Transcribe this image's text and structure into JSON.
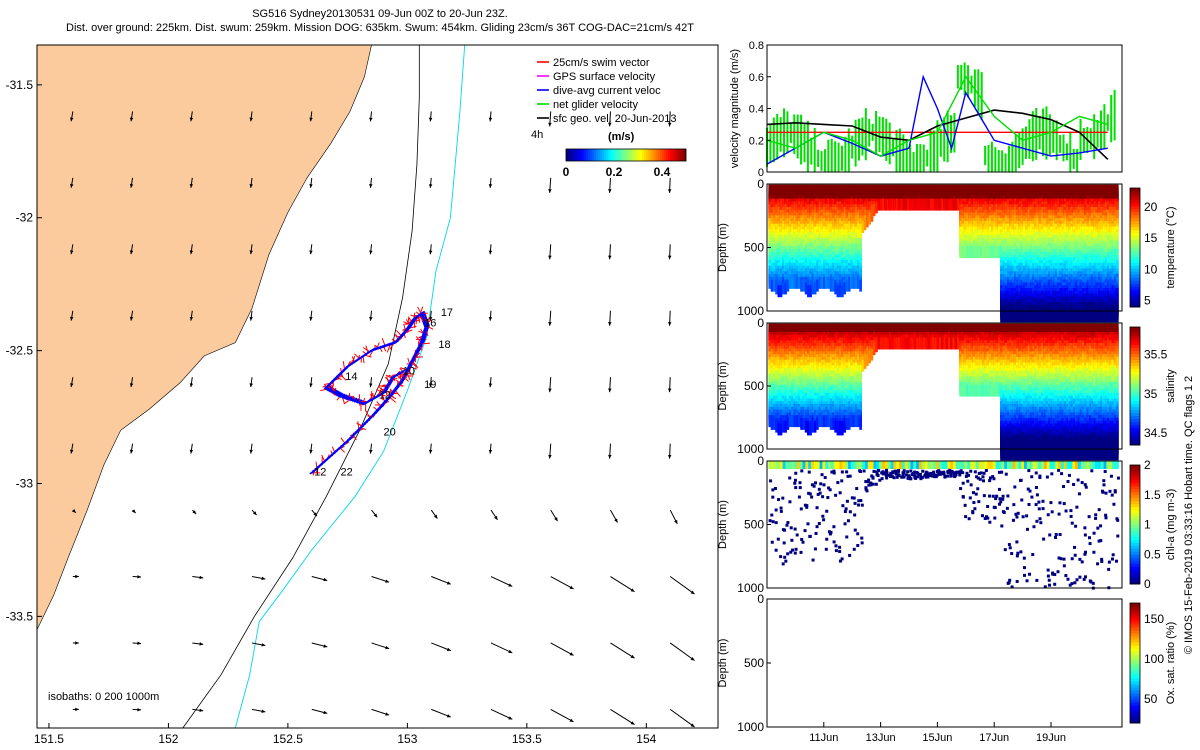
{
  "title_line1": "SG516 Sydney20130531 09-Jun 00Z to 20-Jun 23Z.",
  "title_line2": "Dist. over ground: 225km. Dist. swum: 259km. Mission DOG: 635km. Swum: 454km. Gliding 23cm/s 36T COG-DAC=21cm/s 42T",
  "chart_data": [
    {
      "type": "map",
      "xticks": [
        "151.5",
        "152",
        "152.5",
        "153",
        "153.5",
        "154"
      ],
      "xtick_values": [
        151.5,
        152,
        152.5,
        153,
        153.5,
        154
      ],
      "yticks": [
        "-31.5",
        "-32",
        "-32.5",
        "-33",
        "-33.5"
      ],
      "ytick_values": [
        -31.5,
        -32,
        -32.5,
        -33,
        -33.5
      ],
      "xlim": [
        151.45,
        154.3
      ],
      "ylim": [
        -33.92,
        -31.35
      ],
      "legend": {
        "position": "top-right",
        "entries": [
          {
            "label": "25cm/s swim vector",
            "color": "#ff0000"
          },
          {
            "label": "GPS surface velocity",
            "color": "#ff00ff"
          },
          {
            "label": "dive-avg current veloc",
            "color": "#0000ff"
          },
          {
            "label": "net glider velocity",
            "color": "#00dd00"
          },
          {
            "label": "sfc geo. vel. 20-Jun-2013",
            "color": "#000000"
          }
        ]
      },
      "colorbar": {
        "title": "(m/s)",
        "label": "4h",
        "ticks": [
          "0",
          "0.2",
          "0.4"
        ],
        "range": [
          0,
          0.5
        ]
      },
      "isobaths_label": "isobaths: 0   200  1000m",
      "day_labels": [
        {
          "text": "16",
          "lon": 153.07,
          "lat": -32.41
        },
        {
          "text": "17",
          "lon": 153.14,
          "lat": -32.37
        },
        {
          "text": "18",
          "lon": 153.13,
          "lat": -32.49
        },
        {
          "text": "14",
          "lon": 152.74,
          "lat": -32.61
        },
        {
          "text": "10",
          "lon": 152.98,
          "lat": -32.59
        },
        {
          "text": "19",
          "lon": 153.07,
          "lat": -32.64
        },
        {
          "text": "12",
          "lon": 152.88,
          "lat": -32.68
        },
        {
          "text": "20",
          "lon": 152.9,
          "lat": -32.82
        },
        {
          "text": "22",
          "lon": 152.72,
          "lat": -32.97
        },
        {
          "text": "12",
          "lon": 152.61,
          "lat": -32.97
        }
      ],
      "track": [
        [
          152.6,
          -32.96
        ],
        [
          152.75,
          -32.84
        ],
        [
          152.86,
          -32.74
        ],
        [
          152.93,
          -32.67
        ],
        [
          152.98,
          -32.61
        ],
        [
          153.02,
          -32.54
        ],
        [
          153.06,
          -32.47
        ],
        [
          153.08,
          -32.41
        ],
        [
          153.06,
          -32.36
        ],
        [
          153.03,
          -32.38
        ],
        [
          153.0,
          -32.42
        ],
        [
          152.95,
          -32.47
        ],
        [
          152.85,
          -32.5
        ],
        [
          152.75,
          -32.56
        ],
        [
          152.66,
          -32.64
        ],
        [
          152.72,
          -32.67
        ],
        [
          152.82,
          -32.7
        ],
        [
          152.9,
          -32.66
        ],
        [
          152.94,
          -32.6
        ],
        [
          152.98,
          -32.58
        ]
      ],
      "coastline": [
        [
          151.45,
          -33.55
        ],
        [
          151.52,
          -33.42
        ],
        [
          151.58,
          -33.28
        ],
        [
          151.66,
          -33.1
        ],
        [
          151.73,
          -32.93
        ],
        [
          151.8,
          -32.8
        ],
        [
          151.92,
          -32.72
        ],
        [
          152.05,
          -32.62
        ],
        [
          152.15,
          -32.52
        ],
        [
          152.28,
          -32.47
        ],
        [
          152.35,
          -32.34
        ],
        [
          152.42,
          -32.14
        ],
        [
          152.5,
          -31.98
        ],
        [
          152.58,
          -31.85
        ],
        [
          152.68,
          -31.72
        ],
        [
          152.76,
          -31.6
        ],
        [
          152.82,
          -31.47
        ],
        [
          152.85,
          -31.35
        ]
      ]
    },
    {
      "type": "line",
      "ylabel": "velocity magnitude (m/s)",
      "ylim": [
        0,
        0.8
      ],
      "yticks": [
        "0",
        "0.2",
        "0.4",
        "0.6",
        "0.8"
      ],
      "series": [
        {
          "color": "#ff0000",
          "x": [
            9,
            21
          ],
          "y": [
            0.25,
            0.25
          ]
        },
        {
          "color": "#000000",
          "x": [
            9,
            10,
            11,
            12,
            13,
            14,
            15,
            16,
            17,
            18,
            19,
            20,
            21
          ],
          "y": [
            0.3,
            0.31,
            0.3,
            0.29,
            0.22,
            0.2,
            0.29,
            0.34,
            0.39,
            0.37,
            0.33,
            0.25,
            0.08
          ]
        },
        {
          "color": "#0000ff",
          "x": [
            9,
            10,
            11,
            12,
            13,
            14,
            14.5,
            15,
            15.5,
            16,
            16.5,
            17,
            18,
            19,
            20,
            21
          ],
          "y": [
            0.05,
            0.15,
            0.25,
            0.18,
            0.1,
            0.15,
            0.6,
            0.4,
            0.15,
            0.5,
            0.35,
            0.2,
            0.15,
            0.1,
            0.12,
            0.15
          ]
        },
        {
          "color": "#00dd00",
          "x": [
            9,
            10,
            11,
            12,
            13,
            14,
            15,
            16,
            17,
            18,
            19,
            20,
            21
          ],
          "y": [
            0.2,
            0.15,
            0.25,
            0.2,
            0.1,
            0.2,
            0.25,
            0.6,
            0.35,
            0.2,
            0.25,
            0.35,
            0.3
          ]
        }
      ]
    },
    {
      "type": "heatmap",
      "ylabel": "Depth (m)",
      "ylim": [
        1000,
        0
      ],
      "yticks": [
        "0",
        "500",
        "1000"
      ],
      "colorbar_label": "temperature (°C)",
      "colorbar_ticks": [
        "5",
        "10",
        "15",
        "20"
      ],
      "colorbar_range": [
        4,
        23
      ]
    },
    {
      "type": "heatmap",
      "ylabel": "Depth (m)",
      "ylim": [
        1000,
        0
      ],
      "yticks": [
        "0",
        "500",
        "1000"
      ],
      "colorbar_label": "salinity",
      "colorbar_ticks": [
        "34.5",
        "35",
        "35.5"
      ],
      "colorbar_range": [
        34.35,
        35.85
      ]
    },
    {
      "type": "scatter",
      "ylabel": "Depth (m)",
      "ylim": [
        1000,
        0
      ],
      "yticks": [
        "0",
        "500",
        "1000"
      ],
      "colorbar_label": "chl-a (mg m-3)",
      "colorbar_ticks": [
        "0",
        "0.5",
        "1",
        "1.5",
        "2"
      ],
      "colorbar_range": [
        0,
        2
      ]
    },
    {
      "type": "heatmap",
      "ylabel": "Depth (m)",
      "ylim": [
        1000,
        0
      ],
      "yticks": [
        "0",
        "500",
        "1000"
      ],
      "xticks": [
        "11Jun",
        "13Jun",
        "15Jun",
        "17Jun",
        "19Jun"
      ],
      "xtick_values": [
        11,
        13,
        15,
        17,
        19
      ],
      "xlim": [
        9,
        21.5
      ],
      "colorbar_label": "Ox. sat. ratio (%)",
      "colorbar_ticks": [
        "50",
        "100",
        "150"
      ],
      "colorbar_range": [
        20,
        170
      ]
    }
  ],
  "side_credit": "© IMOS 15-Feb-2019 03:33:16 Hobart time. QC flags 1  2"
}
